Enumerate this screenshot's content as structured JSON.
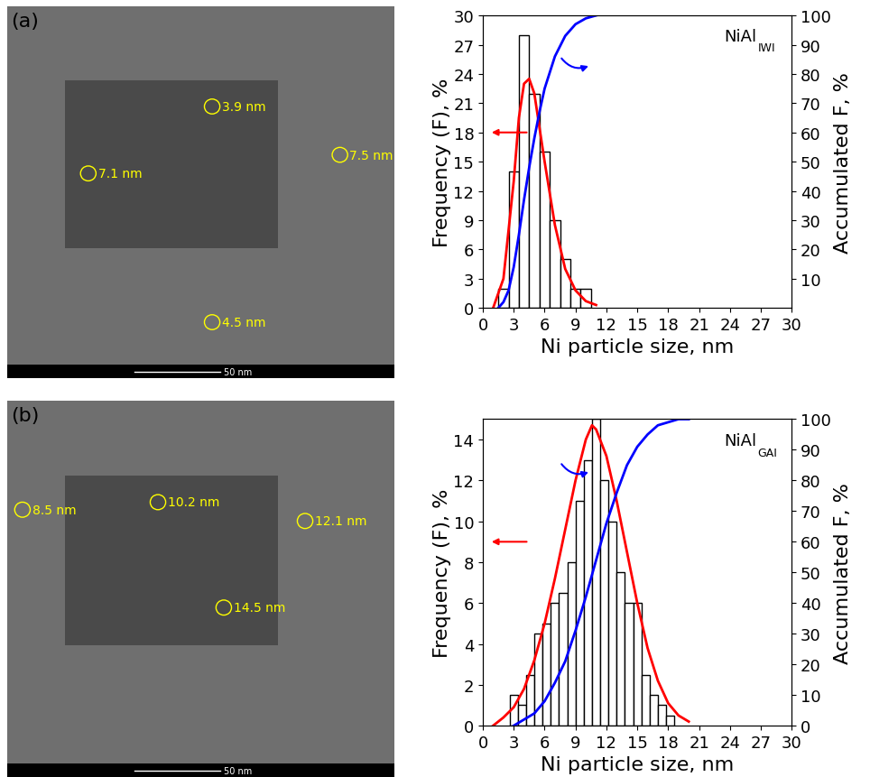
{
  "chart_data": [
    {
      "type": "histogram",
      "sample": "NiAl",
      "sample_subscript": "IWI",
      "x_label": "Ni particle size, nm",
      "y_label": "Frequency (F), %",
      "y2_label": "Accumulated F, %",
      "bins": [
        1.5,
        2.5,
        3.5,
        4.5,
        5.5,
        6.5,
        7.5,
        8.5,
        9.5,
        10.5
      ],
      "values": [
        2,
        14,
        28,
        22,
        16,
        9,
        5,
        2,
        2
      ],
      "series": [
        {
          "type": "line",
          "color": "#ff0000",
          "x": [
            1,
            2,
            3,
            3.5,
            4,
            4.5,
            5,
            6,
            7,
            8,
            9,
            10,
            11
          ],
          "values": [
            0,
            3,
            13,
            19.5,
            23,
            23.5,
            22,
            15,
            8.5,
            4,
            1.8,
            0.7,
            0.3
          ]
        },
        {
          "type": "line",
          "color": "#0000ff",
          "axis": "y2",
          "x": [
            1.5,
            2,
            2.5,
            3,
            3.5,
            4,
            4.5,
            5,
            5.5,
            6,
            7,
            8,
            9,
            10,
            11
          ],
          "values": [
            0,
            2,
            6,
            14,
            25,
            37,
            48,
            58,
            67,
            75,
            86,
            93,
            97,
            99,
            100
          ]
        }
      ],
      "xlim": [
        0,
        30
      ],
      "xticks": [
        0,
        3,
        6,
        9,
        12,
        15,
        18,
        21,
        24,
        27,
        30
      ],
      "ylim": [
        0,
        30
      ],
      "yticks": [
        0,
        3,
        6,
        9,
        12,
        15,
        18,
        21,
        24,
        27,
        30
      ],
      "y2lim": [
        0,
        100
      ],
      "y2ticks": [
        10,
        20,
        30,
        40,
        50,
        60,
        70,
        80,
        90,
        100
      ]
    },
    {
      "type": "histogram",
      "sample": "NiAl",
      "sample_subscript": "GAI",
      "x_label": "Ni particle size, nm",
      "y_label": "Frequency (F), %",
      "y2_label": "Accumulated F, %",
      "bins": [
        2.6,
        3.4,
        4.2,
        5.0,
        5.8,
        6.6,
        7.4,
        8.2,
        9.0,
        9.8,
        10.6,
        11.4,
        12.2,
        13.0,
        13.8,
        14.6,
        15.4,
        16.2,
        17.0,
        17.8,
        18.6
      ],
      "values": [
        1.5,
        1,
        2.5,
        4.5,
        5,
        6,
        6.5,
        8,
        11,
        13,
        15,
        12,
        10,
        7.5,
        6,
        6,
        2.5,
        1.5,
        1,
        0.5
      ],
      "series": [
        {
          "type": "line",
          "color": "#ff0000",
          "x": [
            1,
            2,
            3,
            4,
            5,
            6,
            7,
            8,
            9,
            10,
            10.6,
            11,
            12,
            13,
            14,
            15,
            16,
            17,
            18,
            19,
            20
          ],
          "values": [
            0,
            0.4,
            0.9,
            1.8,
            3.2,
            5,
            7.2,
            9.6,
            12,
            14,
            14.7,
            14.5,
            13.2,
            11,
            8.5,
            6,
            3.8,
            2.2,
            1.1,
            0.5,
            0.2
          ]
        },
        {
          "type": "line",
          "color": "#0000ff",
          "axis": "y2",
          "x": [
            3,
            4,
            5,
            6,
            7,
            8,
            9,
            10,
            11,
            12,
            13,
            14,
            15,
            16,
            17,
            18,
            19,
            20
          ],
          "values": [
            0,
            2,
            4,
            8,
            14,
            21,
            31,
            42,
            54,
            66,
            76,
            85,
            91,
            95,
            98,
            99,
            100,
            100
          ]
        }
      ],
      "xlim": [
        0,
        30
      ],
      "xticks": [
        0,
        3,
        6,
        9,
        12,
        15,
        18,
        21,
        24,
        27,
        30
      ],
      "ylim": [
        0,
        15
      ],
      "yticks": [
        0,
        2,
        4,
        6,
        8,
        10,
        12,
        14
      ],
      "y2lim": [
        0,
        100
      ],
      "y2ticks": [
        0,
        10,
        20,
        30,
        40,
        50,
        60,
        70,
        80,
        90,
        100
      ]
    }
  ],
  "images": [
    {
      "panel": "(a)",
      "labels": [
        "3.9 nm",
        "7.1 nm",
        "7.5 nm",
        "4.5 nm"
      ],
      "scale_bar": "50 nm"
    },
    {
      "panel": "(b)",
      "labels": [
        "8.5 nm",
        "10.2 nm",
        "12.1 nm",
        "14.5 nm"
      ],
      "scale_bar": "50 nm"
    }
  ]
}
